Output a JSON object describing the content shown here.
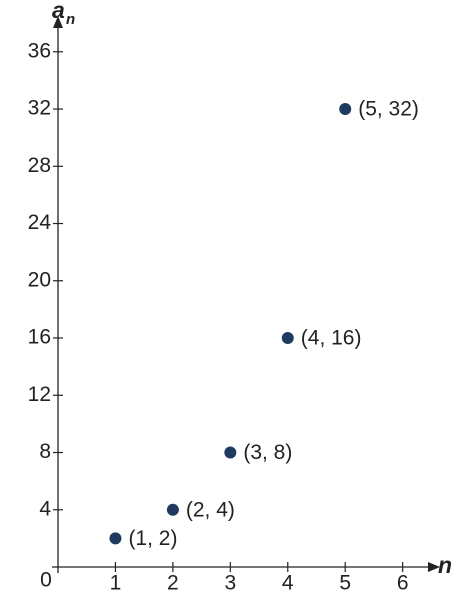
{
  "chart_data": {
    "type": "scatter",
    "x_label": "n",
    "y_label": "a",
    "y_label_subscript": "n",
    "xlim": [
      0,
      6.65
    ],
    "ylim": [
      0,
      38.5
    ],
    "xticks": [
      0,
      1,
      2,
      3,
      4,
      5,
      6
    ],
    "yticks": [
      4,
      8,
      12,
      16,
      20,
      24,
      28,
      32,
      36
    ],
    "series": [
      {
        "color": "#1f3a5f",
        "x": [
          1,
          2,
          3,
          4,
          5
        ],
        "values": [
          2,
          4,
          8,
          16,
          32
        ],
        "value_labels": [
          "(1, 2)",
          "(2, 4)",
          "(3, 8)",
          "(4, 16)",
          "(5, 32)"
        ]
      }
    ]
  }
}
